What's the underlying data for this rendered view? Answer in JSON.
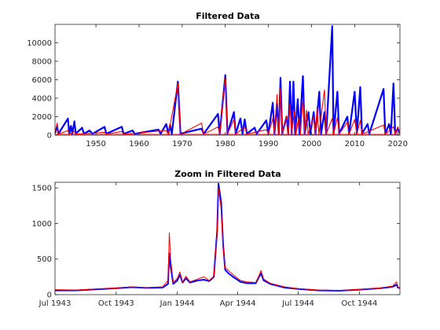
{
  "colors": {
    "series_a": "#0000ff",
    "series_b": "#ff0000",
    "axes": "#262626",
    "background": "#ffffff"
  },
  "chart_data": [
    {
      "type": "line",
      "title": "Filtered Data",
      "xlabel": "",
      "ylabel": "",
      "grid": false,
      "legend": "none",
      "xlim": [
        1940.5,
        2020.5
      ],
      "ylim": [
        0,
        12000
      ],
      "xticks": [
        1950,
        1960,
        1970,
        1980,
        1990,
        2000,
        2010,
        2020
      ],
      "xtick_labels": [
        "1950",
        "1960",
        "1970",
        "1980",
        "1990",
        "2000",
        "2010",
        "2020"
      ],
      "yticks": [
        0,
        2000,
        4000,
        6000,
        8000,
        10000
      ],
      "ytick_labels": [
        "0",
        "2000",
        "4000",
        "6000",
        "8000",
        "10000"
      ],
      "baseline": 150,
      "series": [
        {
          "color": "#0000ff",
          "points": [
            [
              1940.5,
              200
            ],
            [
              1941.0,
              1000
            ],
            [
              1941.3,
              150
            ],
            [
              1943.5,
              1800
            ],
            [
              1943.8,
              150
            ],
            [
              1944.2,
              1000
            ],
            [
              1944.5,
              150
            ],
            [
              1945.0,
              1500
            ],
            [
              1945.3,
              150
            ],
            [
              1946.8,
              800
            ],
            [
              1947.2,
              150
            ],
            [
              1948.5,
              500
            ],
            [
              1949.2,
              150
            ],
            [
              1952.0,
              900
            ],
            [
              1952.4,
              150
            ],
            [
              1956.0,
              900
            ],
            [
              1956.4,
              150
            ],
            [
              1958.5,
              500
            ],
            [
              1959.0,
              150
            ],
            [
              1964.5,
              600
            ],
            [
              1965.0,
              150
            ],
            [
              1966.3,
              1200
            ],
            [
              1966.8,
              150
            ],
            [
              1967.2,
              1100
            ],
            [
              1967.6,
              150
            ],
            [
              1969.0,
              5800
            ],
            [
              1969.6,
              150
            ],
            [
              1974.5,
              700
            ],
            [
              1975.0,
              150
            ],
            [
              1978.3,
              2300
            ],
            [
              1978.7,
              150
            ],
            [
              1980.0,
              6500
            ],
            [
              1980.5,
              150
            ],
            [
              1982.0,
              2500
            ],
            [
              1982.4,
              150
            ],
            [
              1983.5,
              1800
            ],
            [
              1984.0,
              150
            ],
            [
              1984.5,
              1700
            ],
            [
              1985.0,
              150
            ],
            [
              1986.8,
              800
            ],
            [
              1987.3,
              150
            ],
            [
              1989.5,
              1600
            ],
            [
              1990.0,
              150
            ],
            [
              1991.0,
              3500
            ],
            [
              1991.4,
              150
            ],
            [
              1992.0,
              3400
            ],
            [
              1992.4,
              150
            ],
            [
              1992.8,
              6200
            ],
            [
              1993.2,
              150
            ],
            [
              1994.2,
              2000
            ],
            [
              1994.6,
              150
            ],
            [
              1995.0,
              5800
            ],
            [
              1995.4,
              150
            ],
            [
              1995.8,
              5800
            ],
            [
              1996.2,
              150
            ],
            [
              1996.8,
              3900
            ],
            [
              1997.2,
              150
            ],
            [
              1998.0,
              6400
            ],
            [
              1998.4,
              150
            ],
            [
              1999.3,
              2500
            ],
            [
              1999.7,
              150
            ],
            [
              2000.5,
              2500
            ],
            [
              2000.9,
              150
            ],
            [
              2001.8,
              4700
            ],
            [
              2002.2,
              150
            ],
            [
              2003.0,
              2500
            ],
            [
              2003.4,
              150
            ],
            [
              2004.8,
              11800
            ],
            [
              2005.1,
              150
            ],
            [
              2006.0,
              4700
            ],
            [
              2006.4,
              150
            ],
            [
              2008.3,
              2000
            ],
            [
              2008.7,
              150
            ],
            [
              2010.0,
              4700
            ],
            [
              2010.5,
              150
            ],
            [
              2011.3,
              5200
            ],
            [
              2011.7,
              150
            ],
            [
              2013.0,
              1200
            ],
            [
              2013.4,
              150
            ],
            [
              2016.7,
              5000
            ],
            [
              2017.1,
              150
            ],
            [
              2018.0,
              1200
            ],
            [
              2018.4,
              150
            ],
            [
              2019.0,
              5600
            ],
            [
              2019.4,
              150
            ],
            [
              2020.0,
              700
            ],
            [
              2020.5,
              200
            ]
          ]
        },
        {
          "color": "#ff0000",
          "points": [
            [
              1940.5,
              300
            ],
            [
              1941.0,
              1300
            ],
            [
              1941.3,
              100
            ],
            [
              1943.5,
              500
            ],
            [
              1943.8,
              100
            ],
            [
              1945.0,
              400
            ],
            [
              1945.3,
              100
            ],
            [
              1952.0,
              300
            ],
            [
              1952.4,
              100
            ],
            [
              1956.0,
              400
            ],
            [
              1956.4,
              100
            ],
            [
              1966.3,
              500
            ],
            [
              1966.8,
              100
            ],
            [
              1969.0,
              5600
            ],
            [
              1969.6,
              100
            ],
            [
              1974.5,
              1300
            ],
            [
              1975.0,
              100
            ],
            [
              1978.3,
              900
            ],
            [
              1978.7,
              100
            ],
            [
              1980.0,
              6200
            ],
            [
              1980.5,
              100
            ],
            [
              1982.0,
              1700
            ],
            [
              1982.4,
              100
            ],
            [
              1984.5,
              900
            ],
            [
              1985.0,
              100
            ],
            [
              1989.5,
              600
            ],
            [
              1990.0,
              100
            ],
            [
              1991.0,
              1800
            ],
            [
              1991.4,
              100
            ],
            [
              1992.0,
              4400
            ],
            [
              1992.4,
              100
            ],
            [
              1992.8,
              5100
            ],
            [
              1993.2,
              100
            ],
            [
              1994.2,
              2100
            ],
            [
              1994.6,
              100
            ],
            [
              1995.0,
              3400
            ],
            [
              1995.4,
              100
            ],
            [
              1996.0,
              2600
            ],
            [
              1996.4,
              100
            ],
            [
              1997.0,
              1900
            ],
            [
              1997.4,
              100
            ],
            [
              1998.0,
              3900
            ],
            [
              1998.4,
              100
            ],
            [
              1998.8,
              2700
            ],
            [
              1999.2,
              100
            ],
            [
              2000.5,
              2000
            ],
            [
              2000.9,
              100
            ],
            [
              2001.3,
              3100
            ],
            [
              2001.7,
              100
            ],
            [
              2003.0,
              4900
            ],
            [
              2003.4,
              100
            ],
            [
              2004.8,
              1800
            ],
            [
              2005.1,
              100
            ],
            [
              2006.0,
              1900
            ],
            [
              2006.4,
              100
            ],
            [
              2008.3,
              1400
            ],
            [
              2008.7,
              100
            ],
            [
              2010.0,
              1700
            ],
            [
              2010.5,
              100
            ],
            [
              2011.3,
              1600
            ],
            [
              2011.7,
              100
            ],
            [
              2016.7,
              1100
            ],
            [
              2017.1,
              100
            ],
            [
              2019.0,
              900
            ],
            [
              2019.4,
              100
            ],
            [
              2020.0,
              900
            ],
            [
              2020.5,
              300
            ]
          ]
        }
      ]
    },
    {
      "type": "line",
      "title": "Zoom in Filtered Data",
      "xlabel": "",
      "ylabel": "",
      "grid": false,
      "legend": "none",
      "xlim": [
        "1943-07-01",
        "1944-12-01"
      ],
      "ylim": [
        0,
        1580
      ],
      "xticks": [
        "1943-07-01",
        "1943-10-01",
        "1944-01-01",
        "1944-04-01",
        "1944-07-01",
        "1944-10-01"
      ],
      "xtick_labels": [
        "Jul 1943",
        "Oct 1943",
        "Jan 1944",
        "Apr 1944",
        "Jul 1944",
        "Oct 1944"
      ],
      "yticks": [
        0,
        500,
        1000,
        1500
      ],
      "ytick_labels": [
        "0",
        "500",
        "1000",
        "1500"
      ],
      "series": [
        {
          "color": "#0000ff",
          "points": [
            [
              "1943-07-01",
              60
            ],
            [
              "1943-08-01",
              60
            ],
            [
              "1943-09-01",
              75
            ],
            [
              "1943-10-01",
              90
            ],
            [
              "1943-10-25",
              105
            ],
            [
              "1943-11-15",
              95
            ],
            [
              "1943-12-10",
              100
            ],
            [
              "1943-12-18",
              150
            ],
            [
              "1943-12-20",
              580
            ],
            [
              "1943-12-22",
              400
            ],
            [
              "1943-12-26",
              150
            ],
            [
              "1944-01-01",
              200
            ],
            [
              "1944-01-05",
              280
            ],
            [
              "1944-01-09",
              170
            ],
            [
              "1944-01-14",
              230
            ],
            [
              "1944-01-20",
              170
            ],
            [
              "1944-02-01",
              200
            ],
            [
              "1944-02-10",
              210
            ],
            [
              "1944-02-18",
              190
            ],
            [
              "1944-02-25",
              250
            ],
            [
              "1944-03-01",
              900
            ],
            [
              "1944-03-03",
              1560
            ],
            [
              "1944-03-07",
              1300
            ],
            [
              "1944-03-10",
              700
            ],
            [
              "1944-03-13",
              350
            ],
            [
              "1944-03-18",
              300
            ],
            [
              "1944-03-25",
              250
            ],
            [
              "1944-04-05",
              180
            ],
            [
              "1944-04-15",
              160
            ],
            [
              "1944-04-28",
              160
            ],
            [
              "1944-05-03",
              250
            ],
            [
              "1944-05-06",
              300
            ],
            [
              "1944-05-10",
              200
            ],
            [
              "1944-05-20",
              150
            ],
            [
              "1944-06-10",
              100
            ],
            [
              "1944-07-01",
              80
            ],
            [
              "1944-08-01",
              60
            ],
            [
              "1944-09-01",
              55
            ],
            [
              "1944-10-01",
              70
            ],
            [
              "1944-11-01",
              90
            ],
            [
              "1944-11-20",
              110
            ],
            [
              "1944-11-26",
              140
            ],
            [
              "1944-11-28",
              100
            ],
            [
              "1944-12-01",
              90
            ]
          ]
        },
        {
          "color": "#ff0000",
          "points": [
            [
              "1943-07-01",
              70
            ],
            [
              "1943-08-01",
              65
            ],
            [
              "1943-09-01",
              80
            ],
            [
              "1943-10-01",
              95
            ],
            [
              "1943-10-25",
              110
            ],
            [
              "1943-11-15",
              100
            ],
            [
              "1943-12-10",
              110
            ],
            [
              "1943-12-18",
              200
            ],
            [
              "1943-12-20",
              870
            ],
            [
              "1943-12-22",
              500
            ],
            [
              "1943-12-26",
              170
            ],
            [
              "1944-01-01",
              230
            ],
            [
              "1944-01-05",
              320
            ],
            [
              "1944-01-09",
              180
            ],
            [
              "1944-01-14",
              260
            ],
            [
              "1944-01-20",
              180
            ],
            [
              "1944-02-01",
              220
            ],
            [
              "1944-02-10",
              250
            ],
            [
              "1944-02-18",
              200
            ],
            [
              "1944-02-25",
              260
            ],
            [
              "1944-03-01",
              850
            ],
            [
              "1944-03-03",
              1500
            ],
            [
              "1944-03-07",
              1200
            ],
            [
              "1944-03-10",
              650
            ],
            [
              "1944-03-13",
              380
            ],
            [
              "1944-03-18",
              340
            ],
            [
              "1944-03-25",
              280
            ],
            [
              "1944-04-05",
              200
            ],
            [
              "1944-04-15",
              180
            ],
            [
              "1944-04-28",
              170
            ],
            [
              "1944-05-03",
              270
            ],
            [
              "1944-05-06",
              340
            ],
            [
              "1944-05-10",
              220
            ],
            [
              "1944-05-20",
              160
            ],
            [
              "1944-06-10",
              110
            ],
            [
              "1944-07-01",
              85
            ],
            [
              "1944-08-01",
              65
            ],
            [
              "1944-09-01",
              60
            ],
            [
              "1944-10-01",
              75
            ],
            [
              "1944-11-01",
              95
            ],
            [
              "1944-11-20",
              120
            ],
            [
              "1944-11-26",
              180
            ],
            [
              "1944-11-28",
              110
            ],
            [
              "1944-12-01",
              95
            ]
          ]
        }
      ]
    }
  ]
}
